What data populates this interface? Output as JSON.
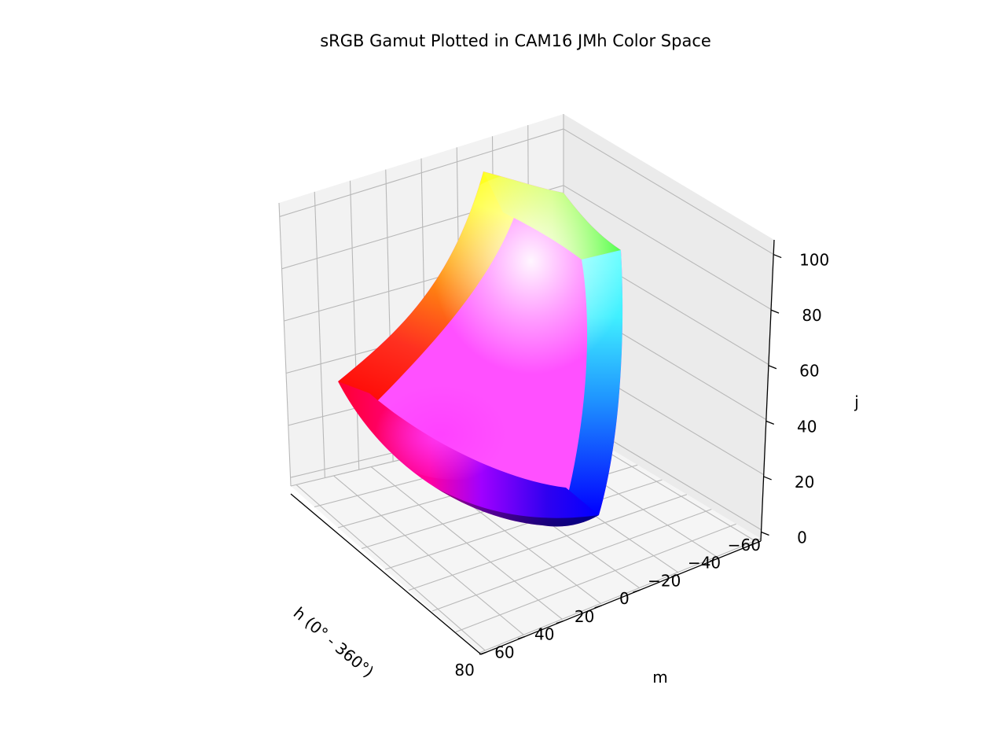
{
  "chart_data": {
    "type": "surface3d",
    "title": "sRGB Gamut Plotted in CAM16 JMh Color Space",
    "xlabel": "h (0° - 360°)",
    "ylabel": "m",
    "zlabel": "j",
    "m_ticks": [
      "80",
      "60",
      "40",
      "20",
      "0",
      "−20",
      "−40",
      "−60"
    ],
    "j_ticks": [
      "0",
      "20",
      "40",
      "60",
      "80",
      "100"
    ],
    "zlim": [
      0,
      100
    ],
    "grid": true,
    "corner_colors": {
      "red": "#ff0000",
      "yellow": "#ffff00",
      "green": "#00ff00",
      "cyan": "#00ffff",
      "blue": "#0000ff",
      "magenta": "#ff00ff",
      "white": "#ffffff",
      "black": "#000000"
    }
  }
}
